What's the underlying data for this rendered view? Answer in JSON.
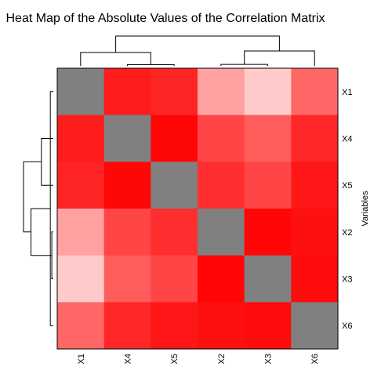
{
  "chart_data": {
    "type": "heatmap",
    "title": "Heat Map of the Absolute Values of the Correlation Matrix",
    "ylabel": "Variables",
    "row_labels": [
      "X1",
      "X4",
      "X5",
      "X2",
      "X3",
      "X6"
    ],
    "col_labels": [
      "X1",
      "X4",
      "X5",
      "X2",
      "X3",
      "X6"
    ],
    "diagonal_color": "#808080",
    "colors": {
      "low": "#ffe6e6",
      "high": "#ff0000"
    },
    "values": [
      [
        null,
        0.88,
        0.84,
        0.3,
        0.12,
        0.55
      ],
      [
        0.88,
        null,
        0.97,
        0.7,
        0.6,
        0.83
      ],
      [
        0.84,
        0.97,
        null,
        0.8,
        0.7,
        0.9
      ],
      [
        0.3,
        0.7,
        0.8,
        null,
        0.98,
        0.93
      ],
      [
        0.12,
        0.6,
        0.7,
        0.98,
        null,
        0.95
      ],
      [
        0.55,
        0.83,
        0.9,
        0.93,
        0.95,
        null
      ]
    ],
    "row_dendrogram": [
      {
        "rows": [
          3,
          4
        ],
        "height": 0.05
      },
      {
        "rows": [
          0,
          5
        ],
        "height": 0.1
      },
      {
        "rows": [
          1,
          2
        ],
        "height": 0.4
      },
      {
        "rows": [
          0,
          3
        ],
        "height": 0.75
      },
      {
        "rows": [
          0,
          1
        ],
        "height": 1.0
      }
    ],
    "col_dendrogram": [
      {
        "cols": [
          1,
          2
        ],
        "height": 0.04
      },
      {
        "cols": [
          3,
          4
        ],
        "height": 0.05
      },
      {
        "cols": [
          0,
          1
        ],
        "height": 0.45
      },
      {
        "cols": [
          3,
          5
        ],
        "height": 0.5
      },
      {
        "cols": [
          0,
          3
        ],
        "height": 1.0
      }
    ]
  }
}
